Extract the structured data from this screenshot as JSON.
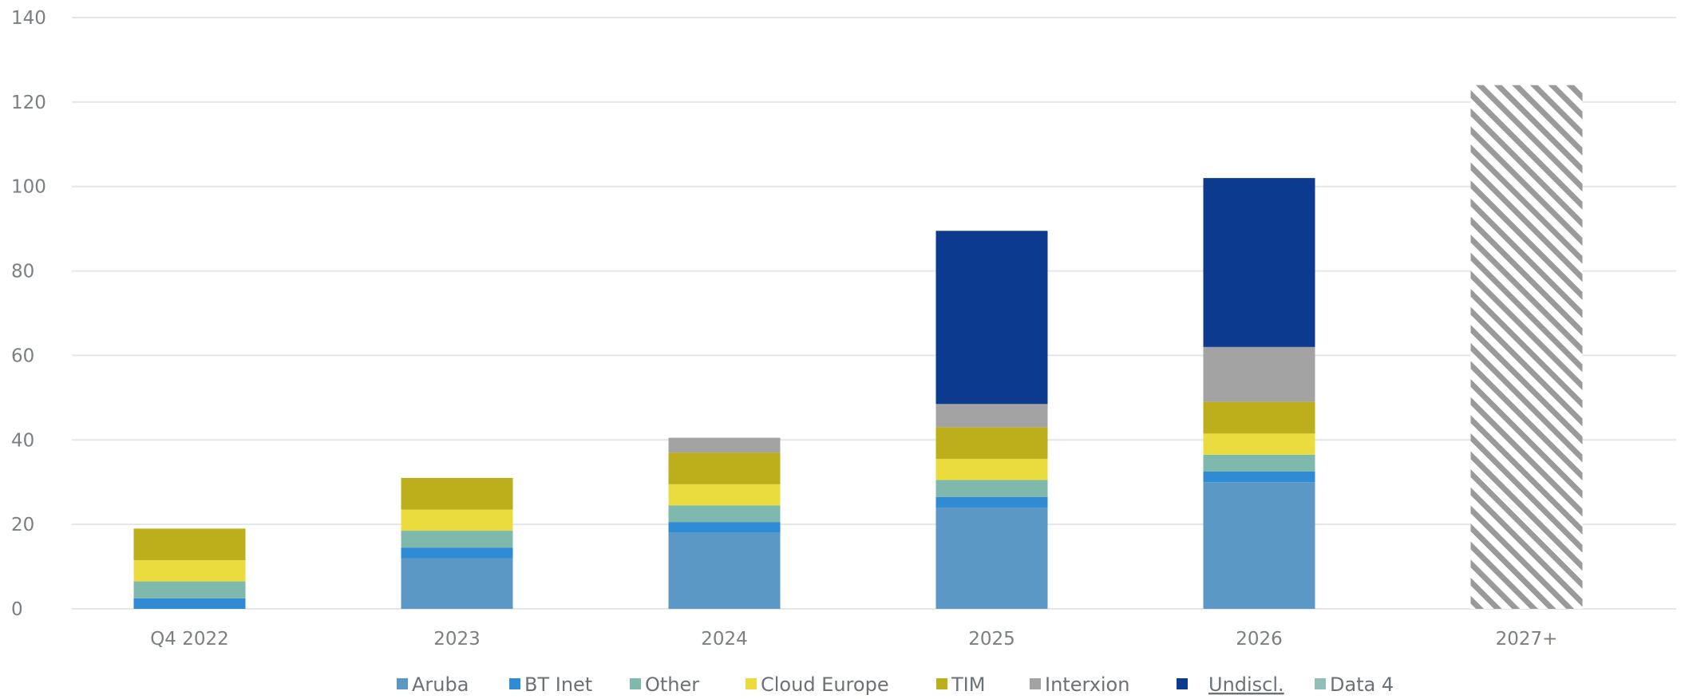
{
  "chart_data": {
    "type": "bar",
    "stacked": true,
    "title": "",
    "xlabel": "",
    "ylabel": "",
    "ylim": [
      0,
      140
    ],
    "yticks": [
      0,
      20,
      40,
      60,
      80,
      100,
      120,
      140
    ],
    "grid": true,
    "legend_position": "bottom",
    "categories": [
      "Q4 2022",
      "2023",
      "2024",
      "2025",
      "2026",
      "2027+"
    ],
    "series": [
      {
        "name": "Aruba",
        "color": "#5b98c6",
        "values": [
          0,
          12,
          18,
          24,
          30,
          0
        ]
      },
      {
        "name": "BT Inet",
        "color": "#2e8bd4",
        "values": [
          2.5,
          2.5,
          2.5,
          2.5,
          2.5,
          0
        ]
      },
      {
        "name": "Other",
        "color": "#7fb8ad",
        "values": [
          4,
          4,
          4,
          4,
          4,
          0
        ]
      },
      {
        "name": "Cloud Europe",
        "color": "#eadc3f",
        "values": [
          5,
          5,
          5,
          5,
          5,
          0
        ]
      },
      {
        "name": "TIM",
        "color": "#bdae1c",
        "values": [
          7.5,
          7.5,
          7.5,
          7.5,
          7.5,
          0
        ]
      },
      {
        "name": "Interxion",
        "color": "#a3a3a3",
        "values": [
          0,
          0,
          3.5,
          5.5,
          13,
          0
        ]
      },
      {
        "name": "Undiscl.",
        "color": "#0b3a8f",
        "values": [
          0,
          0,
          0,
          41,
          40,
          0
        ]
      },
      {
        "name": "Data 4",
        "color": "#8fbfb6",
        "values": [
          0,
          0,
          0,
          0,
          0,
          0
        ]
      }
    ],
    "annotations": [
      {
        "category": "2027+",
        "value": 124,
        "style": "hatched",
        "color": "#9a9a9a"
      }
    ]
  }
}
